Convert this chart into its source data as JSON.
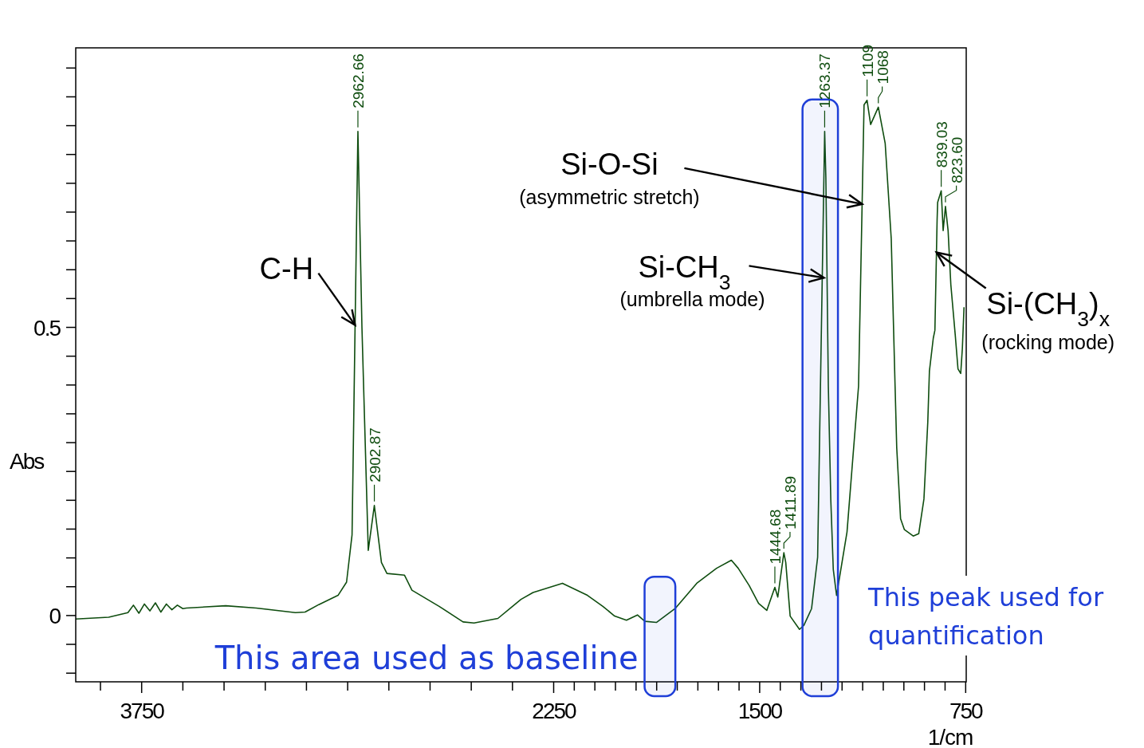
{
  "chart_data": {
    "type": "line",
    "xlabel": "1/cm",
    "ylabel": "Abs",
    "xlim": [
      3990,
      748
    ],
    "ylim": [
      -0.115,
      0.985
    ],
    "xticks": [
      {
        "value": 3900,
        "label": null
      },
      3750,
      {
        "value": 3600,
        "label": null
      },
      {
        "value": 3450,
        "label": null
      },
      {
        "value": 3300,
        "label": null
      },
      {
        "value": 3150,
        "label": null
      },
      {
        "value": 3000,
        "label": null
      },
      {
        "value": 2850,
        "label": null
      },
      {
        "value": 2700,
        "label": null
      },
      {
        "value": 2550,
        "label": null
      },
      {
        "value": 2400,
        "label": null
      },
      2250,
      {
        "value": 2175,
        "label": null
      },
      {
        "value": 2100,
        "label": null
      },
      {
        "value": 2025,
        "label": null
      },
      {
        "value": 1950,
        "label": null
      },
      {
        "value": 1875,
        "label": null
      },
      {
        "value": 1800,
        "label": null
      },
      {
        "value": 1725,
        "label": null
      },
      {
        "value": 1650,
        "label": null
      },
      {
        "value": 1575,
        "label": null
      },
      1500,
      {
        "value": 1425,
        "label": null
      },
      {
        "value": 1350,
        "label": null
      },
      {
        "value": 1275,
        "label": null
      },
      {
        "value": 1200,
        "label": null
      },
      {
        "value": 1125,
        "label": null
      },
      {
        "value": 1050,
        "label": null
      },
      {
        "value": 975,
        "label": null
      },
      {
        "value": 900,
        "label": null
      },
      {
        "value": 825,
        "label": null
      },
      750
    ],
    "yticks": [
      {
        "value": -0.1,
        "label": null
      },
      {
        "value": -0.05,
        "label": null
      },
      0,
      {
        "value": 0.05,
        "label": null
      },
      {
        "value": 0.1,
        "label": null
      },
      {
        "value": 0.15,
        "label": null
      },
      {
        "value": 0.2,
        "label": null
      },
      {
        "value": 0.25,
        "label": null
      },
      {
        "value": 0.3,
        "label": null
      },
      {
        "value": 0.35,
        "label": null
      },
      {
        "value": 0.4,
        "label": null
      },
      {
        "value": 0.45,
        "label": null
      },
      0.5,
      {
        "value": 0.55,
        "label": null
      },
      {
        "value": 0.6,
        "label": null
      },
      {
        "value": 0.65,
        "label": null
      },
      {
        "value": 0.7,
        "label": null
      },
      {
        "value": 0.75,
        "label": null
      },
      {
        "value": 0.8,
        "label": null
      },
      {
        "value": 0.85,
        "label": null
      },
      {
        "value": 0.9,
        "label": null
      },
      {
        "value": 0.95,
        "label": null
      }
    ],
    "grid": false,
    "marker": "none",
    "line_style": "solid",
    "series": [
      {
        "color": "#0f4d0f",
        "x": [
          3990,
          3870,
          3800,
          3780,
          3760,
          3740,
          3720,
          3700,
          3680,
          3660,
          3640,
          3620,
          3600,
          3587,
          3444,
          3333,
          3190,
          3155,
          3105,
          3035,
          3004,
          2984,
          2962.66,
          2948,
          2925,
          2902.87,
          2877,
          2857,
          2793,
          2766,
          2667,
          2580,
          2540,
          2453,
          2369,
          2325,
          2218,
          2127,
          2071,
          2028,
          1985,
          1945,
          1918,
          1876,
          1808,
          1729,
          1657,
          1603,
          1578,
          1538,
          1504,
          1474,
          1444.68,
          1434,
          1411.89,
          1405,
          1389,
          1355,
          1339,
          1311,
          1289,
          1263.37,
          1259,
          1250,
          1241,
          1232,
          1220,
          1182,
          1160,
          1140,
          1130,
          1120,
          1109,
          1096,
          1068,
          1043,
          1021,
          1007,
          1001,
          987,
          973,
          941,
          921,
          902,
          888,
          882,
          868,
          862,
          854,
          852,
          839.03,
          832,
          823.6,
          814,
          804,
          788,
          778,
          768,
          762,
          756
        ],
        "values": [
          -0.006,
          -0.003,
          0.005,
          0.018,
          0.004,
          0.02,
          0.008,
          0.022,
          0.006,
          0.02,
          0.01,
          0.018,
          0.012,
          0.013,
          0.017,
          0.013,
          0.005,
          0.006,
          0.019,
          0.035,
          0.058,
          0.14,
          0.84,
          0.5,
          0.113,
          0.191,
          0.092,
          0.073,
          0.07,
          0.044,
          0.016,
          -0.011,
          -0.013,
          -0.005,
          0.028,
          0.04,
          0.056,
          0.035,
          0.016,
          -0.001,
          -0.008,
          0.001,
          -0.01,
          -0.012,
          0.012,
          0.056,
          0.082,
          0.096,
          0.082,
          0.052,
          0.021,
          0.009,
          0.049,
          0.032,
          0.109,
          0.092,
          -0.001,
          -0.024,
          -0.017,
          0.012,
          0.101,
          0.84,
          0.76,
          0.398,
          0.2,
          0.08,
          0.035,
          0.145,
          0.278,
          0.398,
          0.641,
          0.886,
          0.894,
          0.852,
          0.882,
          0.819,
          0.654,
          0.398,
          0.291,
          0.168,
          0.149,
          0.138,
          0.142,
          0.202,
          0.335,
          0.424,
          0.481,
          0.495,
          0.686,
          0.717,
          0.737,
          0.668,
          0.71,
          0.668,
          0.574,
          0.487,
          0.428,
          0.42,
          0.464,
          0.535
        ]
      }
    ],
    "bands": [
      {
        "axis": "x",
        "from": 1919,
        "to": 1807,
        "label": "This area used as baseline",
        "color": "#1f3fd8"
      },
      {
        "axis": "x",
        "from": 1344,
        "to": 1215,
        "label": "This peak used for quantification",
        "color": "#1f3fd8"
      }
    ],
    "annotations": [
      {
        "text": "C-H",
        "x": 2973,
        "y": 0.504
      },
      {
        "text": "Si-O-Si\n(asymmetric stretch)",
        "x": 1127,
        "y": 0.714
      },
      {
        "text": "Si-CH$_{3}$\n(umbrella mode)",
        "x": 1266,
        "y": 0.586
      },
      {
        "text": "Si-(CH$_{3}$)$_{x}$\n(rocking mode)",
        "x": 856.3,
        "y": 0.63
      },
      {
        "text": "2962.66",
        "x": 2962.66,
        "y": 0.84
      },
      {
        "text": "2902.87",
        "x": 2902.87,
        "y": 0.191
      },
      {
        "text": "1444.68",
        "x": 1444.68,
        "y": 0.049
      },
      {
        "text": "1411.89",
        "x": 1411.89,
        "y": 0.109
      },
      {
        "text": "1263.37",
        "x": 1263.37,
        "y": 0.84
      },
      {
        "text": "1109",
        "x": 1109,
        "y": 0.894
      },
      {
        "text": "1068",
        "x": 1068,
        "y": 0.882
      },
      {
        "text": "839.03",
        "x": 839.03,
        "y": 0.737
      },
      {
        "text": "823.60",
        "x": 823.6,
        "y": 0.71
      }
    ]
  }
}
